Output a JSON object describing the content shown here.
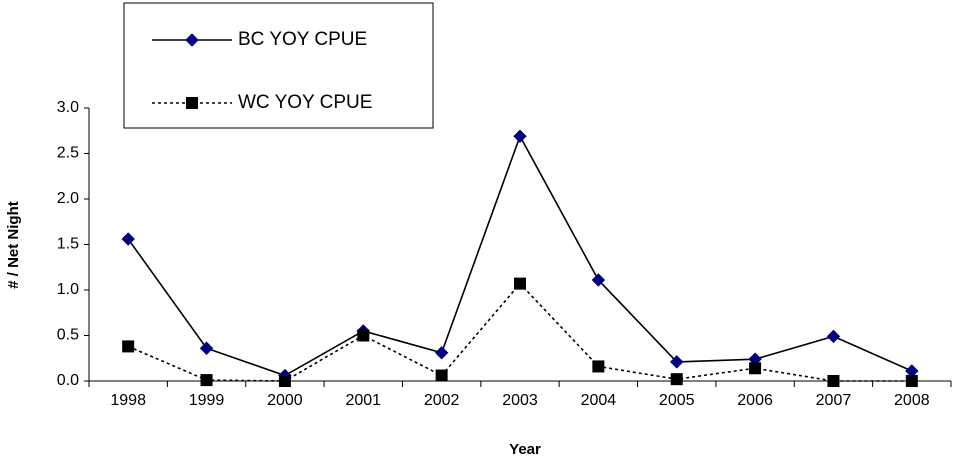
{
  "chart_data": {
    "type": "line",
    "x_label": "Year",
    "y_label": "# / Net Night",
    "categories": [
      "1998",
      "1999",
      "2000",
      "2001",
      "2002",
      "2003",
      "2004",
      "2005",
      "2006",
      "2007",
      "2008"
    ],
    "series": [
      {
        "name": "BC YOY CPUE",
        "color": "#000080",
        "marker": "diamond",
        "dash": "solid",
        "values": [
          1.56,
          0.36,
          0.06,
          0.55,
          0.31,
          2.69,
          1.11,
          0.21,
          0.24,
          0.49,
          0.11
        ]
      },
      {
        "name": "WC YOY CPUE",
        "color": "#000000",
        "marker": "square",
        "dash": "dotted",
        "values": [
          0.38,
          0.01,
          0.0,
          0.5,
          0.06,
          1.07,
          0.16,
          0.02,
          0.14,
          0.0,
          0.0
        ]
      }
    ],
    "ylim": [
      0,
      3
    ],
    "yticks": [
      {
        "value": 0,
        "label": "0.0"
      },
      0.5,
      {
        "value": 1,
        "label": "1.0"
      },
      1.5,
      {
        "value": 2,
        "label": "2.0"
      },
      2.5,
      {
        "value": 3,
        "label": "3.0"
      }
    ]
  }
}
